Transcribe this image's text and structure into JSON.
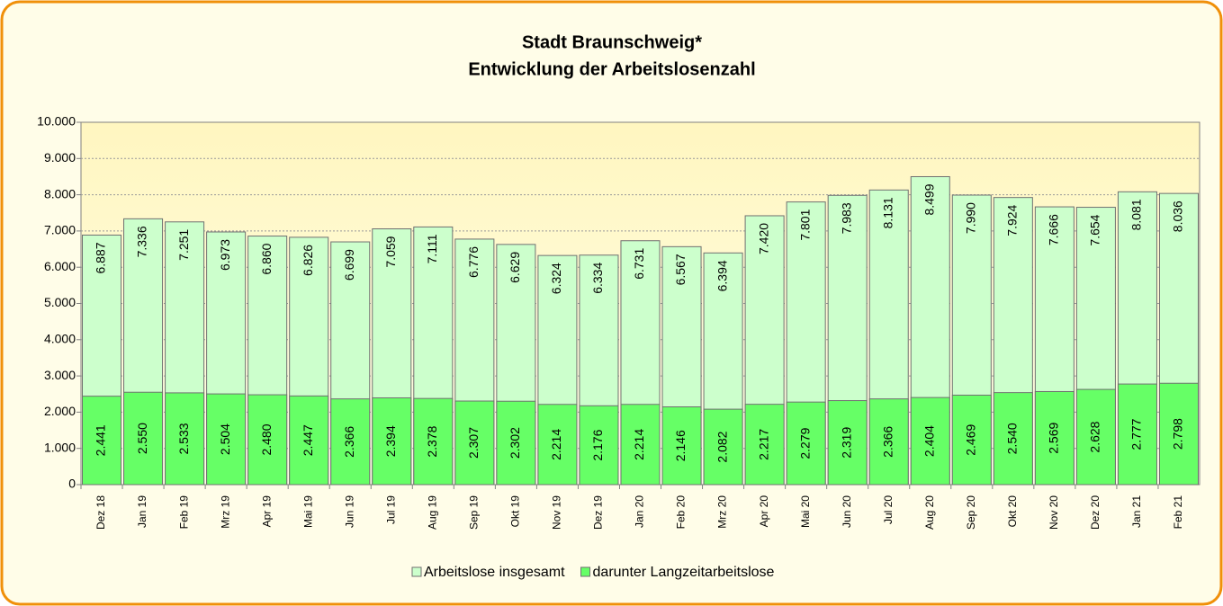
{
  "chart_data": {
    "type": "overlap-bar",
    "title": "Stadt Braunschweig*",
    "subtitle": "Entwicklung der Arbeitslosenzahl",
    "categories": [
      "Dez 18",
      "Jan 19",
      "Feb 19",
      "Mrz 19",
      "Apr 19",
      "Mai 19",
      "Jun 19",
      "Jul 19",
      "Aug 19",
      "Sep 19",
      "Okt 19",
      "Nov 19",
      "Dez 19",
      "Jan 20",
      "Feb 20",
      "Mrz 20",
      "Apr 20",
      "Mai 20",
      "Jun 20",
      "Jul 20",
      "Aug 20",
      "Sep 20",
      "Okt 20",
      "Nov 20",
      "Dez 20",
      "Jan 21",
      "Feb 21"
    ],
    "series": [
      {
        "name": "Arbeitslose insgesamt",
        "color": "#ccffcc",
        "values": [
          6887,
          7336,
          7251,
          6973,
          6860,
          6826,
          6699,
          7059,
          7111,
          6776,
          6629,
          6324,
          6334,
          6731,
          6567,
          6394,
          7420,
          7801,
          7983,
          8131,
          8499,
          7990,
          7924,
          7666,
          7654,
          8081,
          8036
        ],
        "value_labels": [
          "6.887",
          "7.336",
          "7.251",
          "6.973",
          "6.860",
          "6.826",
          "6.699",
          "7.059",
          "7.111",
          "6.776",
          "6.629",
          "6.324",
          "6.334",
          "6.731",
          "6.567",
          "6.394",
          "7.420",
          "7.801",
          "7.983",
          "8.131",
          "8.499",
          "7.990",
          "7.924",
          "7.666",
          "7.654",
          "8.081",
          "8.036"
        ]
      },
      {
        "name": "darunter Langzeitarbeitslose",
        "color": "#66ff66",
        "values": [
          2441,
          2550,
          2533,
          2504,
          2480,
          2447,
          2366,
          2394,
          2378,
          2307,
          2302,
          2214,
          2176,
          2214,
          2146,
          2082,
          2217,
          2279,
          2319,
          2366,
          2404,
          2469,
          2540,
          2569,
          2628,
          2777,
          2798
        ],
        "value_labels": [
          "2.441",
          "2.550",
          "2.533",
          "2.504",
          "2.480",
          "2.447",
          "2.366",
          "2.394",
          "2.378",
          "2.307",
          "2.302",
          "2.214",
          "2.176",
          "2.214",
          "2.146",
          "2.082",
          "2.217",
          "2.279",
          "2.319",
          "2.366",
          "2.404",
          "2.469",
          "2.540",
          "2.569",
          "2.628",
          "2.777",
          "2.798"
        ]
      }
    ],
    "ylim": [
      0,
      10000
    ],
    "yticks": [
      0,
      {
        "value": 1000,
        "label": "1.000"
      },
      {
        "value": 2000,
        "label": "2.000"
      },
      {
        "value": 3000,
        "label": "3.000"
      },
      {
        "value": 4000,
        "label": "4.000"
      },
      {
        "value": 5000,
        "label": "5.000"
      },
      {
        "value": 6000,
        "label": "6.000"
      },
      {
        "value": 7000,
        "label": "7.000"
      },
      {
        "value": 8000,
        "label": "8.000"
      },
      {
        "value": 9000,
        "label": "9.000"
      },
      {
        "value": 10000,
        "label": "10.000"
      }
    ],
    "grid": true,
    "legend": "bottom"
  }
}
